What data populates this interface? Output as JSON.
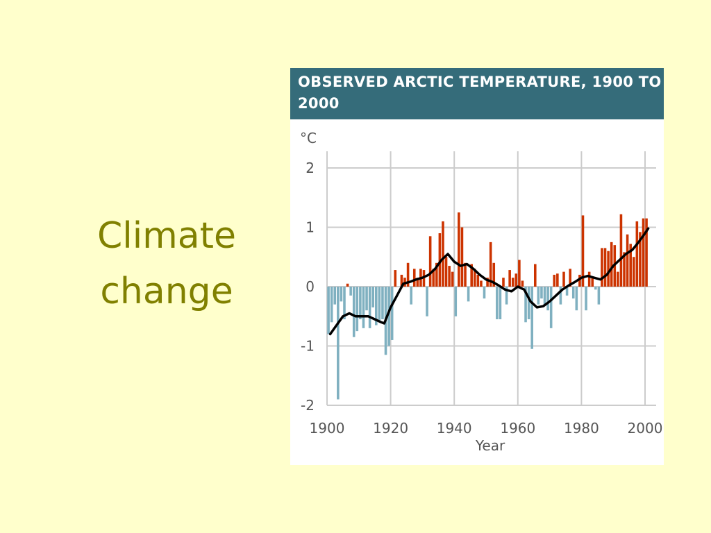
{
  "slide": {
    "title": "Climate change"
  },
  "colors": {
    "background": "#ffffcc",
    "title": "#808000",
    "header": "#356c7a",
    "positive": "#cc3300",
    "negative": "#7fb0c0",
    "trend": "#000000",
    "grid": "#cccccc"
  },
  "chart_data": {
    "type": "bar",
    "title": "OBSERVED ARCTIC TEMPERATURE, 1900 TO 2000",
    "xlabel": "Year",
    "ylabel": "°C",
    "xlim": [
      1900,
      2001
    ],
    "ylim": [
      -2,
      2
    ],
    "x_ticks": [
      1900,
      1920,
      1940,
      1960,
      1980,
      2000
    ],
    "y_ticks": [
      2,
      1,
      0,
      -1,
      -2
    ],
    "grid": true,
    "series": [
      {
        "kind": "bar",
        "x": [
          1900,
          1901,
          1902,
          1903,
          1904,
          1905,
          1906,
          1907,
          1908,
          1909,
          1910,
          1911,
          1912,
          1913,
          1914,
          1915,
          1916,
          1917,
          1918,
          1919,
          1920,
          1921,
          1922,
          1923,
          1924,
          1925,
          1926,
          1927,
          1928,
          1929,
          1930,
          1931,
          1932,
          1933,
          1934,
          1935,
          1936,
          1937,
          1938,
          1939,
          1940,
          1941,
          1942,
          1943,
          1944,
          1945,
          1946,
          1947,
          1948,
          1949,
          1950,
          1951,
          1952,
          1953,
          1954,
          1955,
          1956,
          1957,
          1958,
          1959,
          1960,
          1961,
          1962,
          1963,
          1964,
          1965,
          1966,
          1967,
          1968,
          1969,
          1970,
          1971,
          1972,
          1973,
          1974,
          1975,
          1976,
          1977,
          1978,
          1979,
          1980,
          1981,
          1982,
          1983,
          1984,
          1985,
          1986,
          1987,
          1988,
          1989,
          1990,
          1991,
          1992,
          1993,
          1994,
          1995,
          1996,
          1997,
          1998,
          1999,
          2000
        ],
        "values": [
          -0.8,
          -0.6,
          -0.3,
          -1.9,
          -0.25,
          -0.55,
          0.05,
          -0.15,
          -0.85,
          -0.75,
          -0.55,
          -0.7,
          -0.4,
          -0.7,
          -0.35,
          -0.65,
          -0.6,
          -0.55,
          -1.15,
          -1.0,
          -0.9,
          0.28,
          0.0,
          0.2,
          0.15,
          0.4,
          -0.3,
          0.3,
          0.15,
          0.3,
          0.28,
          -0.5,
          0.85,
          0.3,
          0.4,
          0.9,
          1.1,
          0.5,
          0.35,
          0.25,
          -0.5,
          1.25,
          1.0,
          0.4,
          -0.25,
          0.38,
          0.3,
          0.2,
          0.1,
          -0.2,
          0.15,
          0.75,
          0.4,
          -0.55,
          -0.55,
          0.15,
          -0.3,
          0.28,
          0.15,
          0.22,
          0.45,
          0.1,
          -0.6,
          -0.55,
          -1.05,
          0.38,
          -0.3,
          -0.2,
          -0.3,
          -0.4,
          -0.7,
          0.2,
          0.22,
          -0.3,
          0.25,
          -0.15,
          0.3,
          -0.2,
          -0.4,
          0.2,
          1.2,
          -0.4,
          0.25,
          0.15,
          -0.05,
          -0.3,
          0.65,
          0.65,
          0.6,
          0.75,
          0.7,
          0.25,
          1.22,
          0.58,
          0.88,
          0.72,
          0.5,
          1.1,
          0.92,
          1.15,
          1.15
        ]
      },
      {
        "kind": "line",
        "x": [
          1901,
          1903,
          1905,
          1907,
          1909,
          1911,
          1913,
          1915,
          1917,
          1918,
          1920,
          1922,
          1924,
          1926,
          1928,
          1930,
          1932,
          1934,
          1936,
          1938,
          1940,
          1942,
          1944,
          1946,
          1948,
          1950,
          1952,
          1954,
          1956,
          1958,
          1960,
          1962,
          1964,
          1966,
          1968,
          1970,
          1972,
          1974,
          1976,
          1978,
          1980,
          1982,
          1984,
          1986,
          1988,
          1990,
          1992,
          1994,
          1996,
          1998,
          2000,
          2001
        ],
        "values": [
          -0.8,
          -0.65,
          -0.5,
          -0.45,
          -0.5,
          -0.5,
          -0.5,
          -0.55,
          -0.6,
          -0.62,
          -0.35,
          -0.15,
          0.05,
          0.08,
          0.12,
          0.15,
          0.2,
          0.3,
          0.45,
          0.55,
          0.42,
          0.35,
          0.38,
          0.3,
          0.2,
          0.12,
          0.08,
          0.02,
          -0.05,
          -0.08,
          0.0,
          -0.05,
          -0.25,
          -0.35,
          -0.33,
          -0.25,
          -0.15,
          -0.05,
          0.02,
          0.08,
          0.15,
          0.18,
          0.15,
          0.12,
          0.2,
          0.35,
          0.45,
          0.55,
          0.62,
          0.75,
          0.9,
          0.98
        ]
      }
    ]
  }
}
